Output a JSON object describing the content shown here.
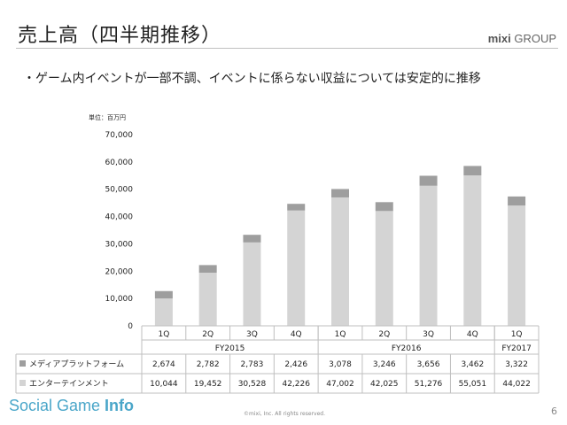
{
  "header": {
    "title": "売上高（四半期推移）",
    "logo_brand": "mixi",
    "logo_group": "GROUP",
    "bullet": "・ゲーム内イベントが一部不調、イベントに係らない収益については安定的に推移"
  },
  "footer": {
    "brand_a": "Social Game ",
    "brand_b": "Info",
    "copyright": "©mixi, Inc. All rights reserved.",
    "page_number": "6"
  },
  "chart_data": {
    "type": "bar",
    "stacked": true,
    "unit_label": "単位：百万円",
    "categories": [
      "1Q",
      "2Q",
      "3Q",
      "4Q",
      "1Q",
      "2Q",
      "3Q",
      "4Q",
      "1Q"
    ],
    "groups": [
      {
        "label": "FY2015",
        "span": 4
      },
      {
        "label": "FY2016",
        "span": 4
      },
      {
        "label": "FY2017",
        "span": 1
      }
    ],
    "series": [
      {
        "name": "エンターテインメント",
        "color": "#d4d4d4",
        "values": [
          10044,
          19452,
          30528,
          42226,
          47002,
          42025,
          51276,
          55051,
          44022
        ],
        "labels": [
          "10,044",
          "19,452",
          "30,528",
          "42,226",
          "47,002",
          "42,025",
          "51,276",
          "55,051",
          "44,022"
        ]
      },
      {
        "name": "メディアプラットフォーム",
        "color": "#9e9e9e",
        "values": [
          2674,
          2782,
          2783,
          2426,
          3078,
          3246,
          3656,
          3462,
          3322
        ],
        "labels": [
          "2,674",
          "2,782",
          "2,783",
          "2,426",
          "3,078",
          "3,246",
          "3,656",
          "3,462",
          "3,322"
        ]
      }
    ],
    "table_order": [
      1,
      0
    ],
    "ylim": [
      0,
      70000
    ],
    "yticks": [
      0,
      10000,
      20000,
      30000,
      40000,
      50000,
      60000,
      70000
    ],
    "ytick_labels": [
      "0",
      "10,000",
      "20,000",
      "30,000",
      "40,000",
      "50,000",
      "60,000",
      "70,000"
    ]
  }
}
